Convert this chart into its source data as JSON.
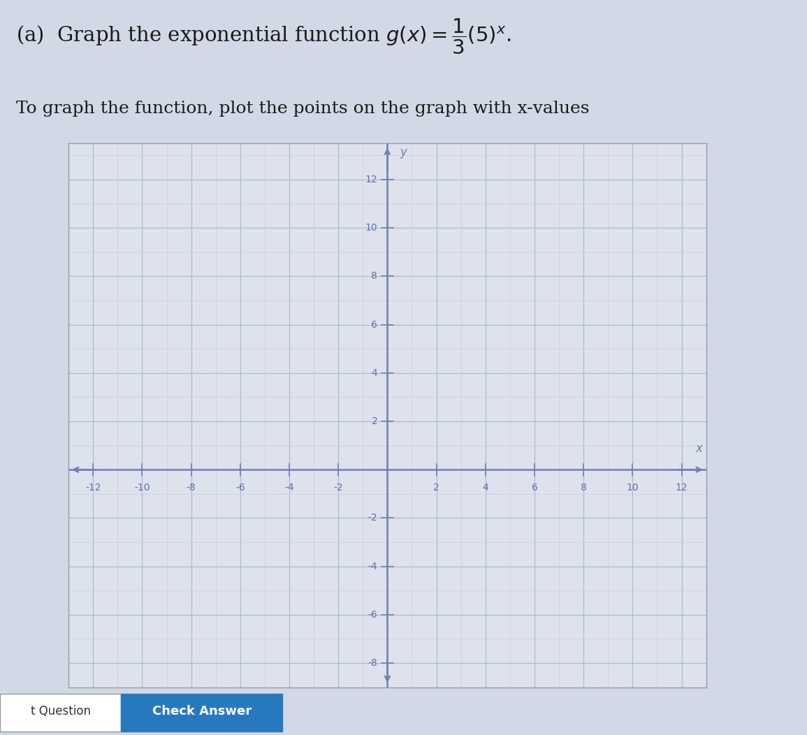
{
  "xmin": -13,
  "xmax": 13,
  "ymin": -9,
  "ymax": 13.5,
  "xticks": [
    -12,
    -10,
    -8,
    -6,
    -4,
    -2,
    2,
    4,
    6,
    8,
    10,
    12
  ],
  "yticks": [
    -8,
    -6,
    -4,
    -2,
    2,
    4,
    6,
    8,
    10,
    12
  ],
  "xlabel": "x",
  "ylabel": "y",
  "grid_color_minor": "#c8cedd",
  "grid_color_major": "#b0bace",
  "axis_color": "#7080b0",
  "bg_color": "#dde2ed",
  "outer_bg": "#d2d8e6",
  "text_color": "#1a1a1a",
  "tick_label_color": "#6070a8",
  "bottom_bar_color": "#2878c0",
  "bottom_bar_text": "Check Answer",
  "bottom_bar_label": "t Question",
  "font_size_title": 21,
  "font_size_subtitle": 18,
  "title_text": "(a)  Graph the exponential function $g(x) = \\dfrac{1}{3}(5)^x$.",
  "subtitle_text": "To graph the function, plot the points on the graph with x-values"
}
